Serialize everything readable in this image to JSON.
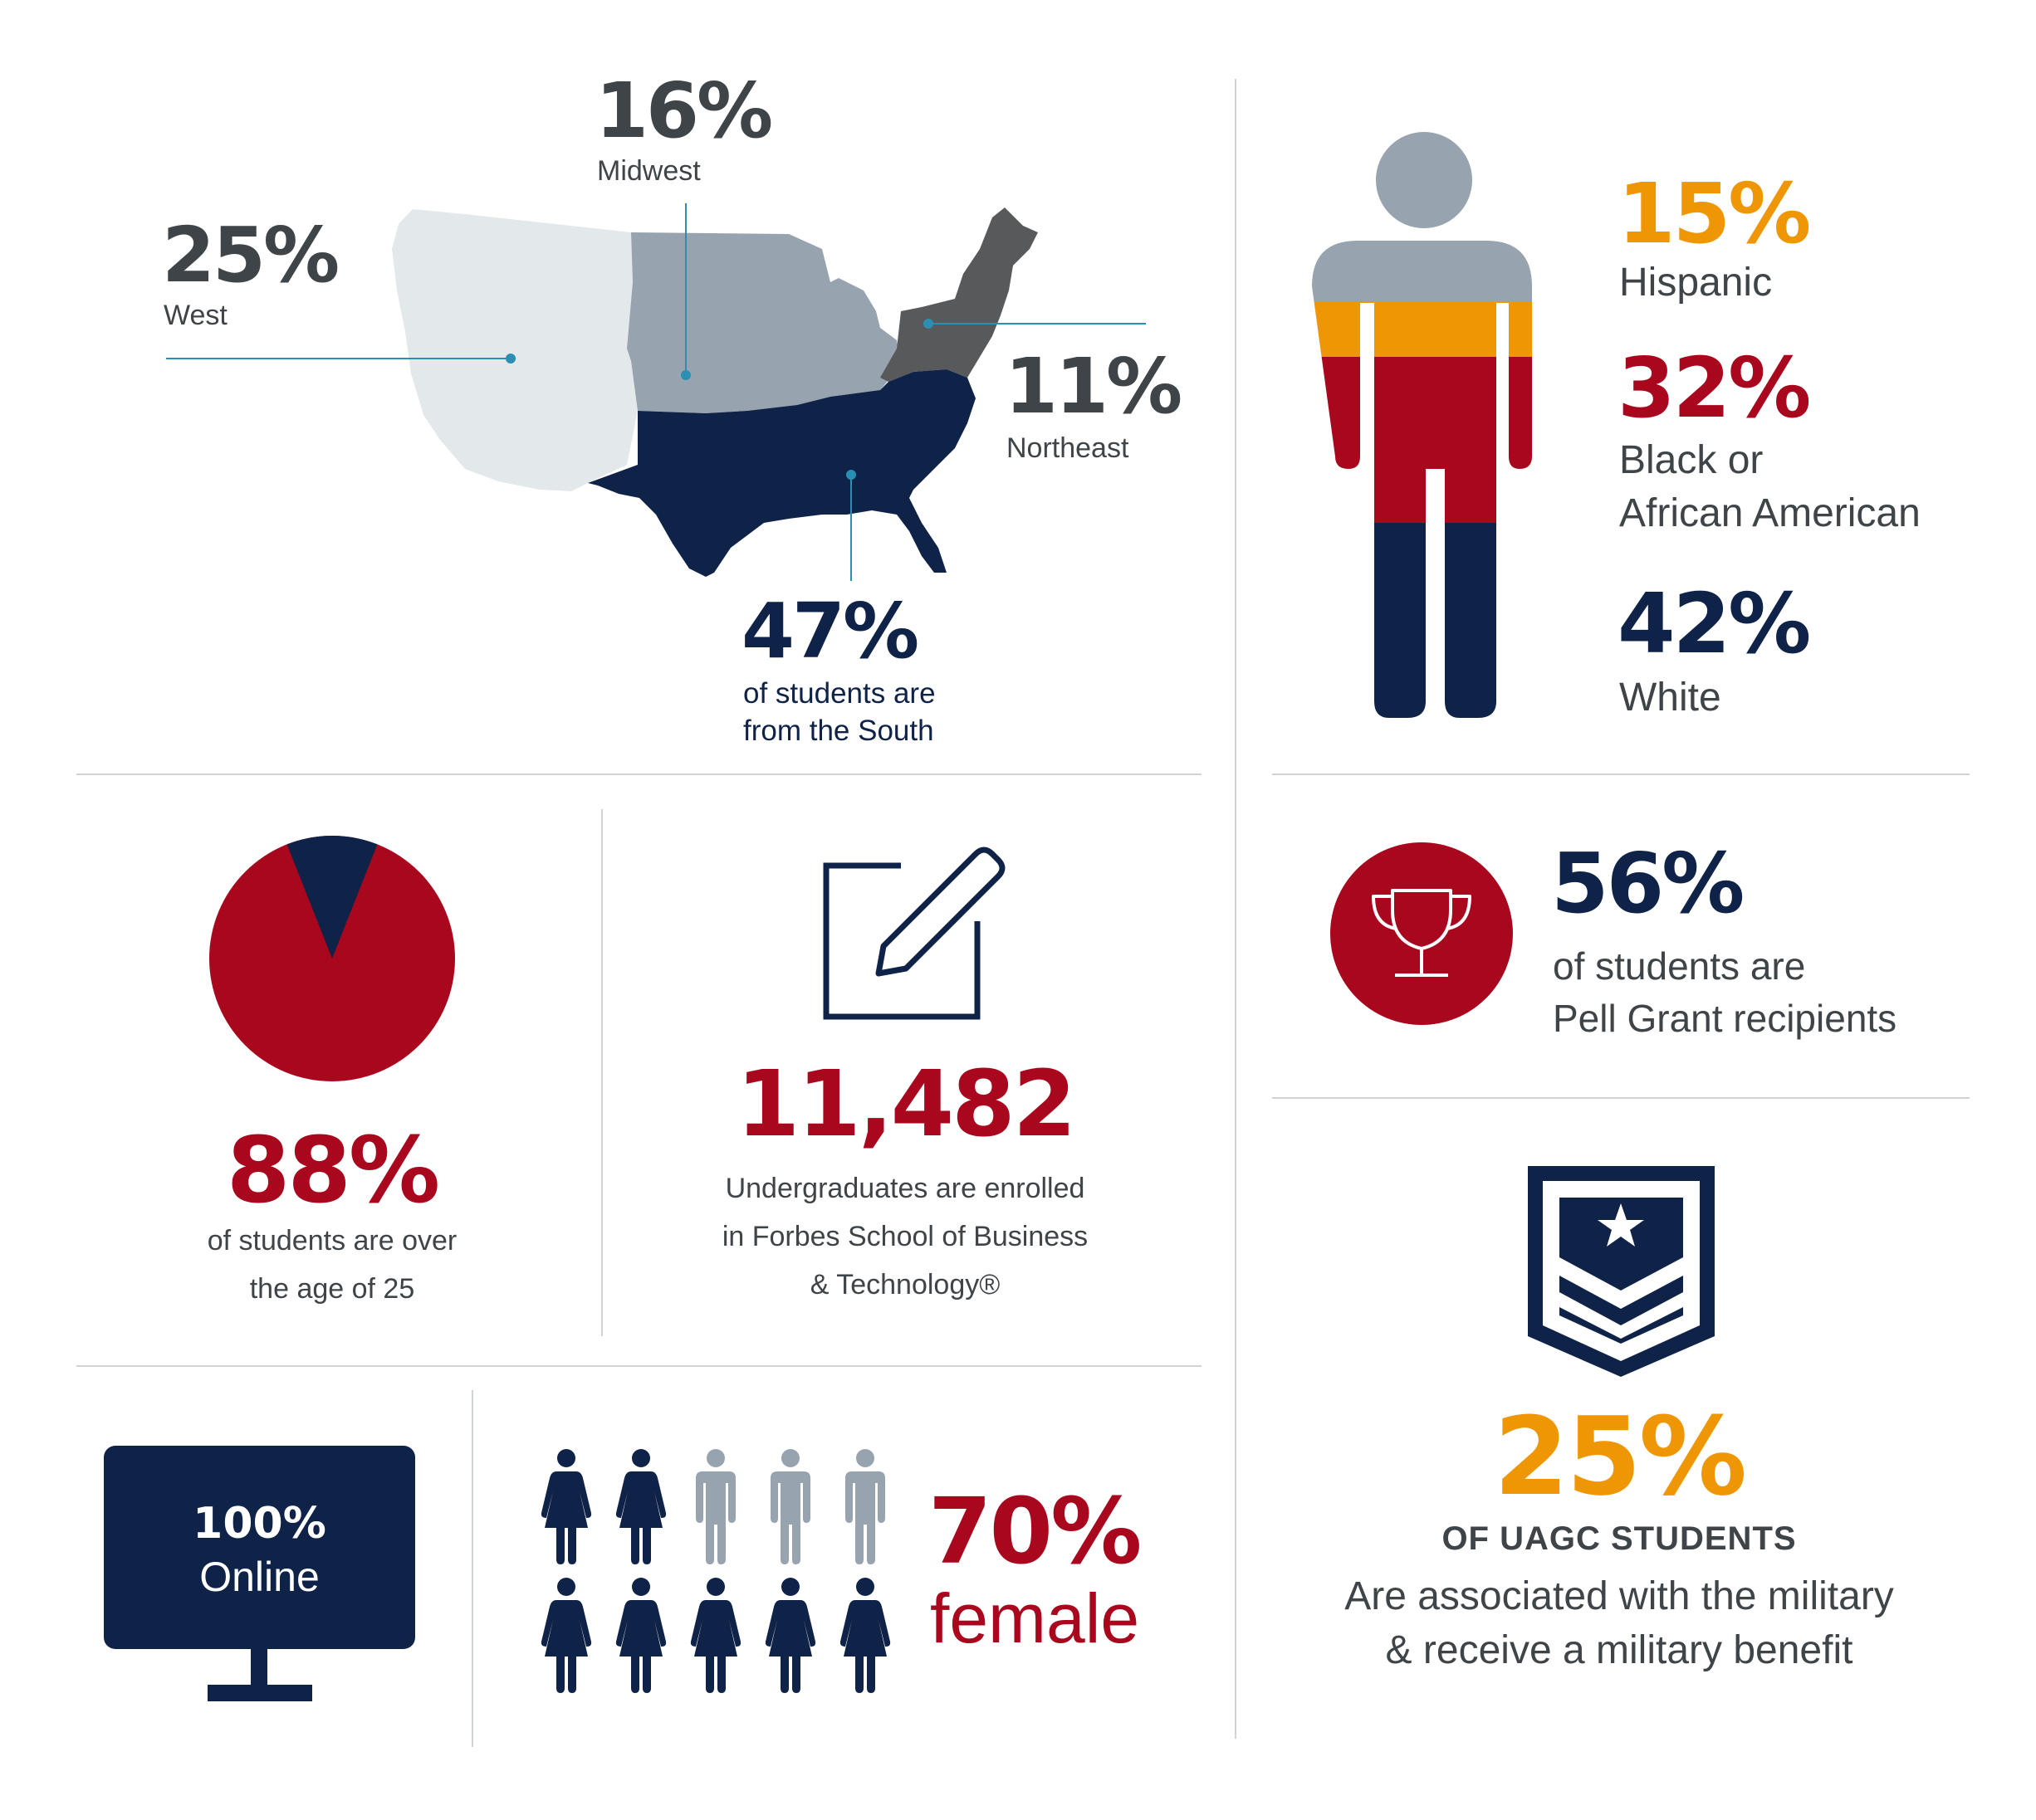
{
  "colors": {
    "navy": "#0f2248",
    "red": "#a8071e",
    "orange": "#ef9605",
    "grey": "#97a3ae",
    "light_grey": "#e3e8ea",
    "dark_grey": "#58595b",
    "text_grey": "#3e4447"
  },
  "region_map": {
    "icon": "us-map-icon",
    "west": {
      "value": "25%",
      "label": "West"
    },
    "midwest": {
      "value": "16%",
      "label": "Midwest"
    },
    "northeast": {
      "value": "11%",
      "label": "Northeast"
    },
    "south": {
      "value": "47%",
      "label_line1": "of students are",
      "label_line2": "from the South"
    }
  },
  "ethnicity": {
    "icon": "person-icon",
    "hispanic": {
      "value": "15%",
      "label": "Hispanic"
    },
    "black": {
      "value": "32%",
      "label_line1": "Black or",
      "label_line2": "African American"
    },
    "white": {
      "value": "42%",
      "label": "White"
    }
  },
  "age": {
    "icon": "pie-chart-icon",
    "value": "88%",
    "share": 0.88,
    "label_line1": "of students are over",
    "label_line2": "the age of 25"
  },
  "enrollment": {
    "icon": "pencil-edit-icon",
    "value": "11,482",
    "label_line1": "Undergraduates are enrolled",
    "label_line2": "in Forbes School of Business",
    "label_line3": "& Technology®"
  },
  "pell": {
    "icon": "trophy-icon",
    "value": "56%",
    "label_line1": "of students are",
    "label_line2": "Pell Grant recipients"
  },
  "military": {
    "icon": "military-badge-icon",
    "value": "25%",
    "heading": "OF UAGC STUDENTS",
    "label_line1": "Are associated with the military",
    "label_line2": "& receive a military benefit"
  },
  "online": {
    "icon": "monitor-icon",
    "line1": "100%",
    "line2": "Online"
  },
  "gender": {
    "icon_female": "female-figure-icon",
    "icon_male": "male-figure-icon",
    "female_share": 0.7,
    "value": "70%",
    "label": "female"
  }
}
